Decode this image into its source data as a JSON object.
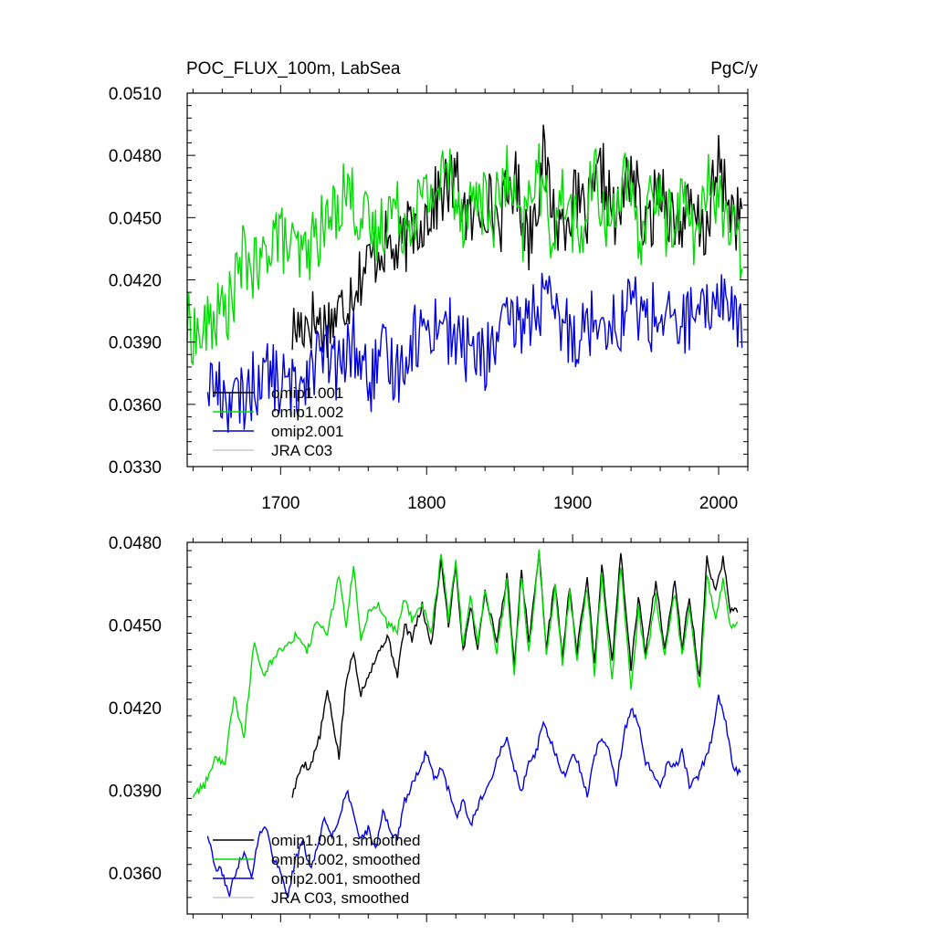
{
  "chart_data": [
    {
      "type": "line",
      "title": "POC_FLUX_100m, LabSea",
      "units": "PgC/y",
      "xlabel": "",
      "ylabel": "",
      "xlim": [
        1636,
        2020
      ],
      "ylim": [
        0.033,
        0.051
      ],
      "x_ticks": [
        1700,
        1800,
        1900,
        2000
      ],
      "x_tick_labels": [
        "1700",
        "1800",
        "1900",
        "2000"
      ],
      "y_ticks": [
        0.033,
        0.036,
        0.039,
        0.042,
        0.045,
        0.048,
        0.051
      ],
      "y_tick_labels": [
        "0.0330",
        "0.0360",
        "0.0390",
        "0.0420",
        "0.0450",
        "0.0480",
        "0.0510"
      ],
      "legend": {
        "placement": "bottom-left",
        "entries": [
          "omip1.001",
          "omip1.002",
          "omip2.001",
          "JRA C03"
        ]
      },
      "series": [
        {
          "name": "omip1.001",
          "color": "#000000",
          "x": [
            1708,
            1720,
            1730,
            1740,
            1750,
            1760,
            1770,
            1780,
            1790,
            1800,
            1810,
            1820,
            1830,
            1840,
            1850,
            1860,
            1870,
            1880,
            1890,
            1900,
            1910,
            1920,
            1930,
            1940,
            1950,
            1960,
            1970,
            1980,
            1990,
            2000,
            2010,
            2016
          ],
          "values": [
            0.0395,
            0.0402,
            0.0398,
            0.0404,
            0.0418,
            0.0428,
            0.0438,
            0.0432,
            0.0445,
            0.0452,
            0.0462,
            0.0468,
            0.0446,
            0.046,
            0.0448,
            0.047,
            0.044,
            0.0478,
            0.0444,
            0.0458,
            0.045,
            0.0472,
            0.0446,
            0.0476,
            0.044,
            0.0468,
            0.0446,
            0.0452,
            0.0442,
            0.0474,
            0.0452,
            0.0448
          ]
        },
        {
          "name": "omip1.002",
          "color": "#00dd00",
          "x": [
            1636,
            1645,
            1655,
            1665,
            1675,
            1685,
            1695,
            1705,
            1715,
            1725,
            1735,
            1745,
            1755,
            1765,
            1775,
            1785,
            1795,
            1805,
            1815,
            1825,
            1835,
            1845,
            1855,
            1865,
            1875,
            1885,
            1895,
            1905,
            1915,
            1925,
            1935,
            1945,
            1955,
            1965,
            1975,
            1985,
            1995,
            2005,
            2016
          ],
          "values": [
            0.0398,
            0.0392,
            0.0402,
            0.0408,
            0.0432,
            0.0422,
            0.0445,
            0.0436,
            0.043,
            0.0442,
            0.045,
            0.0466,
            0.045,
            0.044,
            0.0456,
            0.0448,
            0.0458,
            0.0462,
            0.0474,
            0.0452,
            0.0462,
            0.045,
            0.047,
            0.044,
            0.0476,
            0.0444,
            0.0462,
            0.0438,
            0.047,
            0.0444,
            0.0474,
            0.0436,
            0.0466,
            0.0446,
            0.046,
            0.044,
            0.047,
            0.045,
            0.0432
          ]
        },
        {
          "name": "omip2.001",
          "color": "#0000dd",
          "x": [
            1650,
            1660,
            1670,
            1680,
            1690,
            1700,
            1710,
            1720,
            1730,
            1740,
            1750,
            1760,
            1770,
            1780,
            1790,
            1800,
            1810,
            1820,
            1830,
            1840,
            1850,
            1860,
            1870,
            1880,
            1890,
            1900,
            1910,
            1920,
            1930,
            1940,
            1950,
            1960,
            1970,
            1980,
            1990,
            2000,
            2010,
            2016
          ],
          "values": [
            0.0372,
            0.0365,
            0.036,
            0.0368,
            0.0376,
            0.037,
            0.0366,
            0.038,
            0.0384,
            0.0376,
            0.039,
            0.037,
            0.0382,
            0.0376,
            0.0392,
            0.0396,
            0.0402,
            0.039,
            0.0386,
            0.0382,
            0.0394,
            0.0398,
            0.0402,
            0.041,
            0.04,
            0.0394,
            0.0398,
            0.0406,
            0.0396,
            0.0412,
            0.04,
            0.0404,
            0.0396,
            0.0402,
            0.04,
            0.0416,
            0.0404,
            0.0396
          ]
        },
        {
          "name": "JRA C03",
          "color": "#c8c8c8",
          "x": [],
          "values": []
        }
      ]
    },
    {
      "type": "line",
      "title": "",
      "xlabel": "",
      "ylabel": "",
      "xlim": [
        1636,
        2020
      ],
      "ylim": [
        0.0345,
        0.048
      ],
      "x_ticks": [
        1700,
        1800,
        1900,
        2000
      ],
      "y_ticks": [
        0.036,
        0.039,
        0.042,
        0.045,
        0.048
      ],
      "y_tick_labels": [
        "0.0360",
        "0.0390",
        "0.0420",
        "0.0450",
        "0.0480"
      ],
      "legend": {
        "placement": "bottom-left",
        "entries": [
          "omip1.001, smoothed",
          "omip1.002, smoothed",
          "omip2.001, smoothed",
          "JRA C03, smoothed"
        ]
      },
      "series": [
        {
          "name": "omip1.001, smoothed",
          "color": "#000000",
          "x": [
            1708,
            1715,
            1720,
            1727,
            1732,
            1740,
            1745,
            1750,
            1755,
            1760,
            1767,
            1773,
            1780,
            1785,
            1790,
            1797,
            1803,
            1810,
            1815,
            1820,
            1825,
            1830,
            1835,
            1840,
            1848,
            1855,
            1860,
            1865,
            1870,
            1877,
            1882,
            1888,
            1893,
            1898,
            1903,
            1910,
            1915,
            1920,
            1927,
            1933,
            1940,
            1945,
            1950,
            1957,
            1963,
            1970,
            1975,
            1980,
            1987,
            1992,
            1998,
            2003,
            2008,
            2013
          ],
          "values": [
            0.0388,
            0.04,
            0.0398,
            0.041,
            0.0426,
            0.0402,
            0.043,
            0.044,
            0.0425,
            0.0432,
            0.044,
            0.0446,
            0.0432,
            0.045,
            0.0445,
            0.0457,
            0.0442,
            0.0474,
            0.045,
            0.0472,
            0.044,
            0.0457,
            0.0442,
            0.0462,
            0.0444,
            0.0468,
            0.0436,
            0.047,
            0.0444,
            0.0476,
            0.0442,
            0.0466,
            0.0438,
            0.0464,
            0.044,
            0.0468,
            0.0436,
            0.0472,
            0.0436,
            0.0476,
            0.0434,
            0.046,
            0.044,
            0.0466,
            0.0442,
            0.0466,
            0.0442,
            0.046,
            0.043,
            0.0474,
            0.0462,
            0.0474,
            0.0456,
            0.0455
          ]
        },
        {
          "name": "omip1.002, smoothed",
          "color": "#00dd00",
          "x": [
            1640,
            1648,
            1655,
            1662,
            1668,
            1675,
            1682,
            1688,
            1695,
            1702,
            1710,
            1718,
            1725,
            1732,
            1740,
            1745,
            1750,
            1755,
            1760,
            1767,
            1773,
            1780,
            1785,
            1790,
            1797,
            1803,
            1810,
            1815,
            1820,
            1825,
            1830,
            1835,
            1840,
            1848,
            1855,
            1860,
            1865,
            1870,
            1877,
            1882,
            1888,
            1893,
            1898,
            1903,
            1910,
            1915,
            1920,
            1927,
            1933,
            1940,
            1945,
            1950,
            1957,
            1963,
            1970,
            1975,
            1980,
            1987,
            1992,
            1998,
            2003,
            2008,
            2013
          ],
          "values": [
            0.0388,
            0.0392,
            0.0402,
            0.04,
            0.0424,
            0.041,
            0.0445,
            0.0432,
            0.0438,
            0.0442,
            0.0446,
            0.044,
            0.0452,
            0.0446,
            0.0468,
            0.045,
            0.0472,
            0.0444,
            0.0455,
            0.0458,
            0.045,
            0.0448,
            0.046,
            0.0452,
            0.0458,
            0.0446,
            0.0476,
            0.0452,
            0.0474,
            0.0442,
            0.046,
            0.0444,
            0.0462,
            0.044,
            0.0466,
            0.0432,
            0.0468,
            0.044,
            0.0476,
            0.044,
            0.0464,
            0.0436,
            0.0462,
            0.0438,
            0.0464,
            0.0432,
            0.0468,
            0.043,
            0.0472,
            0.0426,
            0.0456,
            0.0436,
            0.046,
            0.0438,
            0.0462,
            0.0438,
            0.0456,
            0.0426,
            0.0468,
            0.0452,
            0.0466,
            0.045,
            0.045
          ]
        },
        {
          "name": "omip2.001, smoothed",
          "color": "#0000dd",
          "x": [
            1650,
            1655,
            1660,
            1665,
            1670,
            1675,
            1680,
            1685,
            1690,
            1695,
            1700,
            1705,
            1710,
            1715,
            1720,
            1725,
            1730,
            1735,
            1740,
            1745,
            1750,
            1755,
            1760,
            1765,
            1770,
            1775,
            1780,
            1785,
            1790,
            1795,
            1800,
            1805,
            1810,
            1815,
            1820,
            1825,
            1830,
            1835,
            1840,
            1845,
            1850,
            1855,
            1860,
            1865,
            1870,
            1875,
            1880,
            1885,
            1890,
            1895,
            1900,
            1905,
            1910,
            1915,
            1920,
            1925,
            1930,
            1935,
            1940,
            1945,
            1950,
            1955,
            1960,
            1965,
            1970,
            1975,
            1980,
            1985,
            1990,
            1995,
            2000,
            2005,
            2010,
            2015
          ],
          "values": [
            0.0374,
            0.0362,
            0.036,
            0.0352,
            0.0362,
            0.0368,
            0.0358,
            0.0374,
            0.0376,
            0.0366,
            0.036,
            0.0352,
            0.0364,
            0.0372,
            0.0362,
            0.0368,
            0.038,
            0.0374,
            0.0378,
            0.039,
            0.0382,
            0.0372,
            0.0376,
            0.0368,
            0.0382,
            0.0376,
            0.0372,
            0.0386,
            0.0392,
            0.0398,
            0.0404,
            0.0394,
            0.0398,
            0.039,
            0.038,
            0.0386,
            0.0377,
            0.0384,
            0.039,
            0.0396,
            0.0404,
            0.041,
            0.0398,
            0.039,
            0.04,
            0.0404,
            0.0414,
            0.0408,
            0.04,
            0.0394,
            0.0404,
            0.0398,
            0.0388,
            0.0402,
            0.041,
            0.0404,
            0.0392,
            0.041,
            0.042,
            0.0414,
            0.04,
            0.0396,
            0.039,
            0.04,
            0.0398,
            0.0404,
            0.0392,
            0.0394,
            0.04,
            0.0408,
            0.0424,
            0.0414,
            0.0398,
            0.0396
          ]
        },
        {
          "name": "JRA C03, smoothed",
          "color": "#c8c8c8",
          "x": [],
          "values": []
        }
      ]
    }
  ]
}
